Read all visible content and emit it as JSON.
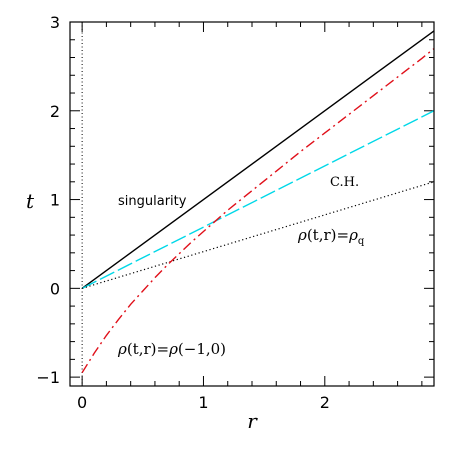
{
  "chart_data": {
    "type": "line",
    "xlabel": "r",
    "ylabel": "t",
    "xlim": [
      -0.1,
      2.9
    ],
    "ylim": [
      -1.1,
      3.0
    ],
    "xticks_major": [
      0,
      1,
      2
    ],
    "yticks_major": [
      -1,
      0,
      1,
      2,
      3
    ],
    "xticks_minor_step": 0.2,
    "yticks_minor_step": 0.2,
    "vertical_reference_line": {
      "x": 0,
      "style": "dotted",
      "color": "#000000"
    },
    "series": [
      {
        "id": "singularity",
        "style": "solid",
        "color": "#000000",
        "x": [
          0,
          2.9
        ],
        "y": [
          0.0,
          2.9
        ]
      },
      {
        "id": "cauchy-horizon",
        "style": "long-dash",
        "color": "#00d8e8",
        "x": [
          0,
          2.9
        ],
        "y": [
          0.0,
          2.0
        ]
      },
      {
        "id": "rho-q",
        "style": "dotted",
        "color": "#000000",
        "x": [
          0,
          2.9
        ],
        "y": [
          0.0,
          1.2
        ]
      },
      {
        "id": "rho-minus1",
        "style": "dash-dot",
        "color": "#e0101a",
        "x": [
          0.0,
          0.1,
          0.2,
          0.3,
          0.4,
          0.5,
          0.6,
          0.7,
          0.8,
          0.9,
          1.0,
          1.2,
          1.4,
          1.6,
          1.8,
          2.0,
          2.2,
          2.4,
          2.6,
          2.8,
          2.9
        ],
        "y": [
          -0.95,
          -0.73,
          -0.53,
          -0.35,
          -0.18,
          -0.03,
          0.12,
          0.26,
          0.39,
          0.52,
          0.64,
          0.88,
          1.1,
          1.32,
          1.54,
          1.75,
          1.96,
          2.17,
          2.38,
          2.59,
          2.7
        ]
      }
    ],
    "annotations": {
      "singularity": "singularity",
      "ch": "C.H.",
      "rho_q": {
        "rho": "ρ",
        "args": "(t,r)",
        "eq": "=",
        "rho2": "ρ",
        "sub": "q"
      },
      "rho_m1": {
        "rho": "ρ",
        "args": "(t,r)",
        "eq": "=",
        "rho2": "ρ",
        "args2": "(−1,0)"
      }
    }
  }
}
